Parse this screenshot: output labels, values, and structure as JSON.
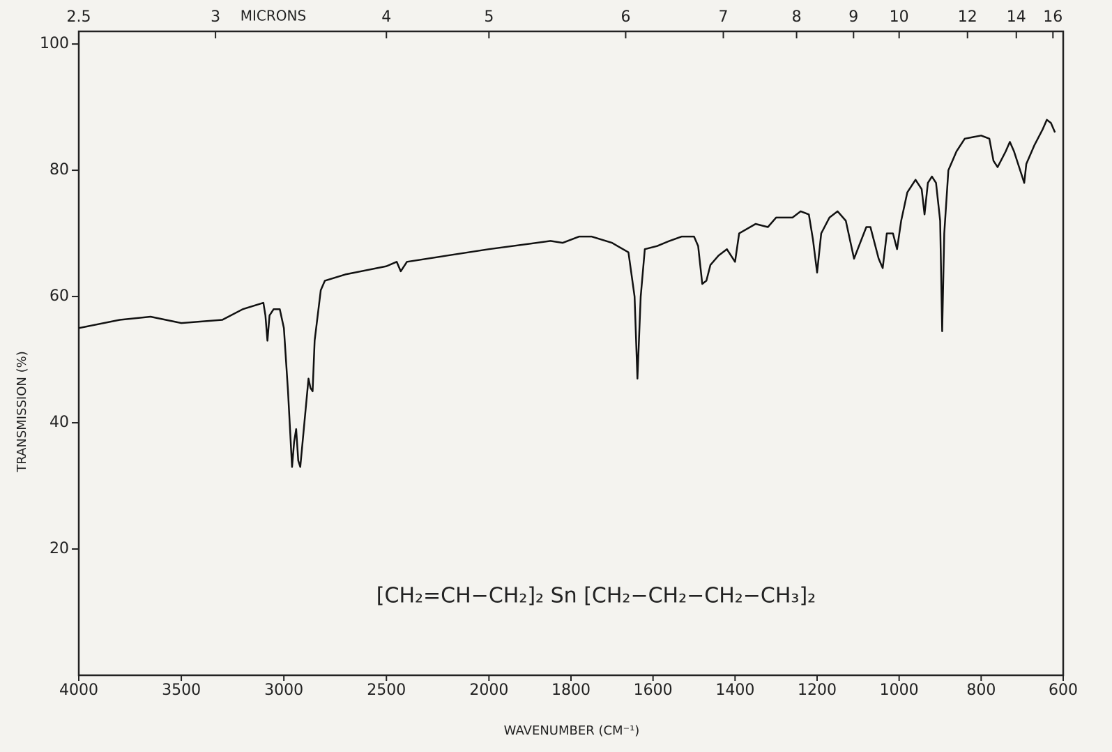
{
  "chart_data": {
    "type": "line",
    "annotation": "[CH₂=CH−CH₂]₂ Sn [CH₂−CH₂−CH₂−CH₃]₂",
    "x_label": "WAVENUMBER (CM⁻¹)",
    "y_label": "TRANSMISSION (%)",
    "x2_label": "MICRONS",
    "color": "#111111",
    "xlim": [
      4000,
      600
    ],
    "x_scale_break": 2000,
    "x_scale_ratio": 2,
    "xticks": [
      4000,
      3500,
      3000,
      2500,
      2000,
      1800,
      1600,
      1400,
      1200,
      1000,
      800,
      600
    ],
    "x2ticks": [
      2.5,
      3,
      4,
      5,
      6,
      7,
      8,
      9,
      10,
      12,
      14,
      16
    ],
    "ylim": [
      0,
      102
    ],
    "yticks": [
      20,
      40,
      60,
      80,
      100
    ],
    "x": [
      4000,
      3800,
      3650,
      3500,
      3300,
      3200,
      3100,
      3090,
      3080,
      3070,
      3050,
      3020,
      3000,
      2980,
      2960,
      2950,
      2940,
      2930,
      2920,
      2900,
      2880,
      2870,
      2860,
      2850,
      2820,
      2800,
      2700,
      2500,
      2450,
      2430,
      2400,
      2200,
      2000,
      1850,
      1820,
      1780,
      1750,
      1700,
      1660,
      1645,
      1638,
      1630,
      1620,
      1590,
      1560,
      1530,
      1500,
      1490,
      1480,
      1470,
      1460,
      1440,
      1420,
      1400,
      1390,
      1350,
      1320,
      1300,
      1260,
      1240,
      1220,
      1210,
      1200,
      1190,
      1170,
      1150,
      1130,
      1110,
      1095,
      1080,
      1070,
      1050,
      1040,
      1030,
      1015,
      1005,
      995,
      980,
      960,
      945,
      938,
      930,
      920,
      910,
      900,
      895,
      890,
      880,
      860,
      840,
      800,
      780,
      770,
      760,
      740,
      730,
      720,
      700,
      695,
      690,
      670,
      650,
      640,
      630,
      620
    ],
    "values": [
      55,
      56.3,
      56.8,
      55.8,
      56.3,
      58,
      59,
      57,
      53,
      57,
      58,
      58,
      55,
      45,
      33,
      37,
      39,
      34,
      33,
      40,
      47,
      45.5,
      45,
      53,
      61,
      62.5,
      63.5,
      64.8,
      65.5,
      64,
      65.5,
      66.5,
      67.5,
      68.8,
      68.5,
      69.5,
      69.5,
      68.5,
      67,
      60,
      47,
      60,
      67.5,
      68,
      68.8,
      69.5,
      69.5,
      68,
      62,
      62.5,
      65,
      66.5,
      67.5,
      65.5,
      70,
      71.5,
      71,
      72.5,
      72.5,
      73.5,
      73,
      69,
      63.8,
      70,
      72.5,
      73.5,
      72,
      66,
      68.5,
      71,
      71,
      66,
      64.5,
      70,
      70,
      67.5,
      72,
      76.5,
      78.5,
      77,
      73,
      78,
      79,
      78,
      72,
      54.5,
      70,
      80,
      83,
      85,
      85.5,
      85,
      81.5,
      80.5,
      83,
      84.5,
      83,
      79,
      78,
      81,
      84,
      86.5,
      88,
      87.5,
      86
    ]
  }
}
